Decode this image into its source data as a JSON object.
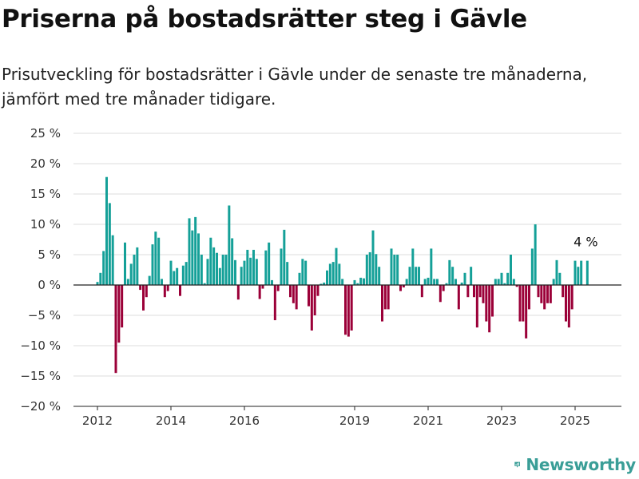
{
  "header": {
    "title": "Priserna på bostadsrätter steg i Gävle",
    "subtitle": "Prisutveckling för bostadsrätter i Gävle under de senaste tre månaderna, jämfört med tre månader tidigare."
  },
  "brand": {
    "name": "Newsworthy",
    "color": "#3a9e97"
  },
  "colors": {
    "positive": "#14a098",
    "negative": "#9b0038"
  },
  "chart_data": {
    "type": "bar",
    "unit": "%",
    "ylim": [
      -20,
      25
    ],
    "yticks": [
      {
        "value": 25,
        "label": "25 %"
      },
      {
        "value": 20,
        "label": "20 %"
      },
      {
        "value": 15,
        "label": "15 %"
      },
      {
        "value": 10,
        "label": "10 %"
      },
      {
        "value": 5,
        "label": "5 %"
      },
      {
        "value": 0,
        "label": "0 %"
      },
      {
        "value": -5,
        "label": "−5 %"
      },
      {
        "value": -10,
        "label": "−10 %"
      },
      {
        "value": -15,
        "label": "−15 %"
      },
      {
        "value": -20,
        "label": "−20 %"
      }
    ],
    "xticks": [
      "2012",
      "2014",
      "2016",
      "2019",
      "2021",
      "2023",
      "2025"
    ],
    "grid": true,
    "annotation": "4 %",
    "start": "2012-01",
    "frequency": "monthly",
    "values": [
      0.5,
      2.0,
      5.6,
      17.8,
      13.5,
      8.2,
      -14.5,
      -9.5,
      -7.0,
      7.0,
      1.0,
      3.5,
      5.0,
      6.2,
      -0.8,
      -4.2,
      -2.0,
      1.5,
      6.7,
      8.8,
      7.8,
      1.0,
      -2.0,
      -1.0,
      4.0,
      2.3,
      2.8,
      -1.8,
      3.2,
      3.8,
      11.0,
      9.0,
      11.2,
      8.5,
      5.0,
      0.3,
      4.3,
      7.8,
      6.2,
      5.3,
      2.8,
      5.0,
      5.0,
      13.1,
      7.7,
      4.1,
      -2.4,
      3.0,
      4.0,
      5.8,
      4.5,
      5.8,
      4.3,
      -2.3,
      -0.6,
      5.7,
      7.0,
      0.8,
      -5.8,
      -1.0,
      6.0,
      9.1,
      3.8,
      -2.0,
      -3.0,
      -4.0,
      2.0,
      4.3,
      4.0,
      -3.5,
      -7.5,
      -5.0,
      -1.8,
      0.2,
      0.4,
      2.4,
      3.5,
      3.8,
      6.1,
      3.5,
      1.0,
      -8.2,
      -8.5,
      -7.5,
      0.8,
      0.3,
      1.2,
      1.1,
      5.0,
      5.4,
      9.0,
      5.1,
      3.0,
      -6.0,
      -4.0,
      -4.0,
      6.0,
      5.0,
      5.0,
      -1.0,
      -0.4,
      1.0,
      3.0,
      6.0,
      3.0,
      3.0,
      -2.0,
      1.0,
      1.2,
      6.0,
      1.0,
      1.0,
      -2.8,
      -1.0,
      0.3,
      4.1,
      3.0,
      1.0,
      -4.0,
      0.4,
      2.0,
      -2.0,
      3.0,
      -2.0,
      -7.0,
      -2.0,
      -3.0,
      -6.0,
      -7.8,
      -5.2,
      1.0,
      1.0,
      2.0,
      0.3,
      2.0,
      5.0,
      1.0,
      -0.3,
      -6.0,
      -6.0,
      -8.8,
      -4.0,
      6.0,
      10.0,
      -2.0,
      -3.0,
      -4.0,
      -3.0,
      -3.0,
      1.0,
      4.1,
      2.0,
      -2.0,
      -6.0,
      -7.0,
      -4.0,
      4.0,
      3.0,
      4.0,
      0.0,
      4.0
    ]
  }
}
